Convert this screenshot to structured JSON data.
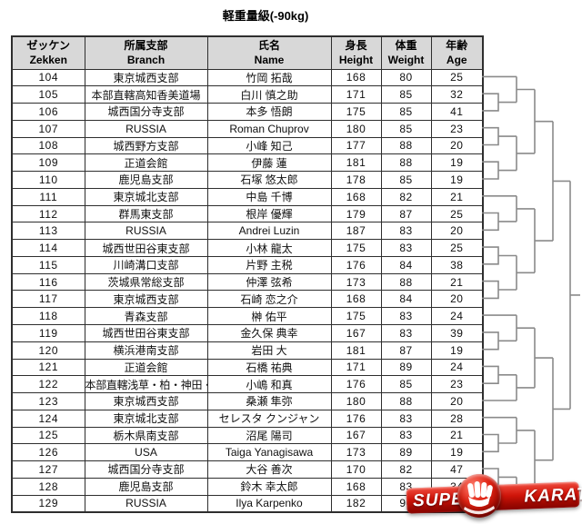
{
  "title": "軽重量級(-90kg)",
  "table": {
    "headers": [
      {
        "jp": "ゼッケン",
        "en": "Zekken"
      },
      {
        "jp": "所属支部",
        "en": "Branch"
      },
      {
        "jp": "氏名",
        "en": "Name"
      },
      {
        "jp": "身長",
        "en": "Height"
      },
      {
        "jp": "体重",
        "en": "Weight"
      },
      {
        "jp": "年齢",
        "en": "Age"
      }
    ],
    "rows": [
      {
        "zekken": "104",
        "branch": "東京城西支部",
        "name": "竹岡 拓哉",
        "height": "168",
        "weight": "80",
        "age": "25"
      },
      {
        "zekken": "105",
        "branch": "本部直轄高知香美道場",
        "name": "白川 慎之助",
        "height": "171",
        "weight": "85",
        "age": "32"
      },
      {
        "zekken": "106",
        "branch": "城西国分寺支部",
        "name": "本多 悟朗",
        "height": "175",
        "weight": "85",
        "age": "41"
      },
      {
        "zekken": "107",
        "branch": "RUSSIA",
        "name": "Roman Chuprov",
        "height": "180",
        "weight": "85",
        "age": "23"
      },
      {
        "zekken": "108",
        "branch": "城西野方支部",
        "name": "小峰 知己",
        "height": "177",
        "weight": "88",
        "age": "20"
      },
      {
        "zekken": "109",
        "branch": "正道会館",
        "name": "伊藤 蓮",
        "height": "181",
        "weight": "88",
        "age": "19"
      },
      {
        "zekken": "110",
        "branch": "鹿児島支部",
        "name": "石塚 悠太郎",
        "height": "178",
        "weight": "85",
        "age": "19"
      },
      {
        "zekken": "111",
        "branch": "東京城北支部",
        "name": "中島 千博",
        "height": "168",
        "weight": "82",
        "age": "21"
      },
      {
        "zekken": "112",
        "branch": "群馬東支部",
        "name": "根岸 優輝",
        "height": "179",
        "weight": "87",
        "age": "25"
      },
      {
        "zekken": "113",
        "branch": "RUSSIA",
        "name": "Andrei Luzin",
        "height": "187",
        "weight": "83",
        "age": "20"
      },
      {
        "zekken": "114",
        "branch": "城西世田谷東支部",
        "name": "小林 龍太",
        "height": "175",
        "weight": "83",
        "age": "25"
      },
      {
        "zekken": "115",
        "branch": "川崎溝口支部",
        "name": "片野 主税",
        "height": "176",
        "weight": "84",
        "age": "38"
      },
      {
        "zekken": "116",
        "branch": "茨城県常総支部",
        "name": "仲澤 弦希",
        "height": "173",
        "weight": "88",
        "age": "21"
      },
      {
        "zekken": "117",
        "branch": "東京城西支部",
        "name": "石崎 恋之介",
        "height": "168",
        "weight": "84",
        "age": "20"
      },
      {
        "zekken": "118",
        "branch": "青森支部",
        "name": "榊 佑平",
        "height": "175",
        "weight": "83",
        "age": "24"
      },
      {
        "zekken": "119",
        "branch": "城西世田谷東支部",
        "name": "金久保 典幸",
        "height": "167",
        "weight": "83",
        "age": "39"
      },
      {
        "zekken": "120",
        "branch": "横浜港南支部",
        "name": "岩田 大",
        "height": "181",
        "weight": "87",
        "age": "19"
      },
      {
        "zekken": "121",
        "branch": "正道会館",
        "name": "石橋 祐典",
        "height": "171",
        "weight": "89",
        "age": "24"
      },
      {
        "zekken": "122",
        "branch": "本部直轄浅草・柏・神田・松戸・三郷・草加・船堀道場",
        "name": "小嶋 和真",
        "height": "176",
        "weight": "85",
        "age": "23"
      },
      {
        "zekken": "123",
        "branch": "東京城西支部",
        "name": "桑瀬 隼弥",
        "height": "180",
        "weight": "88",
        "age": "20"
      },
      {
        "zekken": "124",
        "branch": "東京城北支部",
        "name": "セレスタ クンジャン",
        "height": "176",
        "weight": "83",
        "age": "28"
      },
      {
        "zekken": "125",
        "branch": "栃木県南支部",
        "name": "沼尾 陽司",
        "height": "167",
        "weight": "83",
        "age": "21"
      },
      {
        "zekken": "126",
        "branch": "USA",
        "name": "Taiga Yanagisawa",
        "height": "173",
        "weight": "89",
        "age": "19"
      },
      {
        "zekken": "127",
        "branch": "城西国分寺支部",
        "name": "大谷 善次",
        "height": "170",
        "weight": "82",
        "age": "47"
      },
      {
        "zekken": "128",
        "branch": "鹿児島支部",
        "name": "鈴木 幸太郎",
        "height": "168",
        "weight": "83",
        "age": "34"
      },
      {
        "zekken": "129",
        "branch": "RUSSIA",
        "name": "Ilya Karpenko",
        "height": "182",
        "weight": "90",
        "age": ""
      }
    ]
  },
  "bracket": {
    "type": "single-elimination",
    "byes": [
      "104",
      "111",
      "118",
      "123",
      "124",
      "129"
    ],
    "first_round_pairs": [
      [
        "105",
        "106"
      ],
      [
        "107",
        "108"
      ],
      [
        "109",
        "110"
      ],
      [
        "112",
        "113"
      ],
      [
        "114",
        "115"
      ],
      [
        "116",
        "117"
      ],
      [
        "119",
        "120"
      ],
      [
        "121",
        "122"
      ],
      [
        "125",
        "126"
      ],
      [
        "127",
        "128"
      ]
    ]
  },
  "watermark": {
    "left": "SUPER",
    "right": "KARATE"
  },
  "colors": {
    "header_bg": "#d8d8d8",
    "table_border": "#2e2e2e",
    "bracket_line": "#8a8a8a",
    "watermark_red": "#cf1409"
  }
}
